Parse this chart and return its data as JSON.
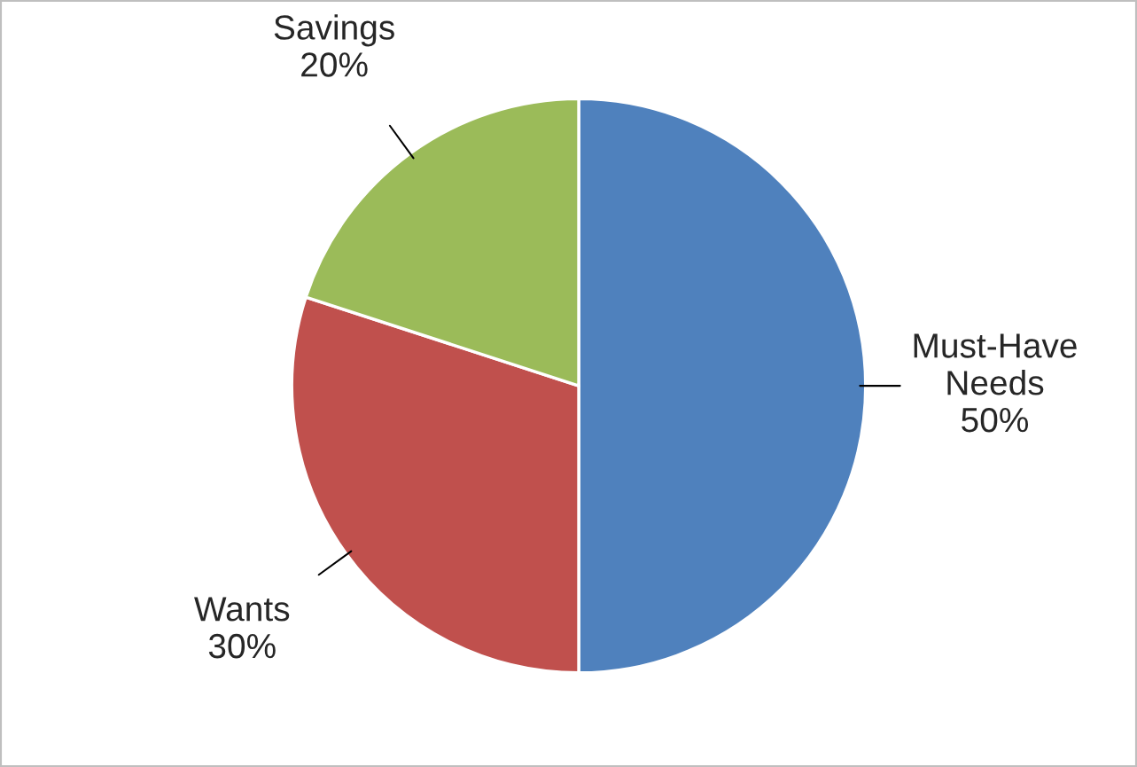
{
  "chart_data": {
    "type": "pie",
    "categories": [
      "Must-Have Needs",
      "Wants",
      "Savings"
    ],
    "values": [
      50,
      30,
      20
    ],
    "colors": [
      "#4f81bd",
      "#c0504d",
      "#9bbb59"
    ],
    "value_labels": [
      "50%",
      "30%",
      "20%"
    ]
  }
}
